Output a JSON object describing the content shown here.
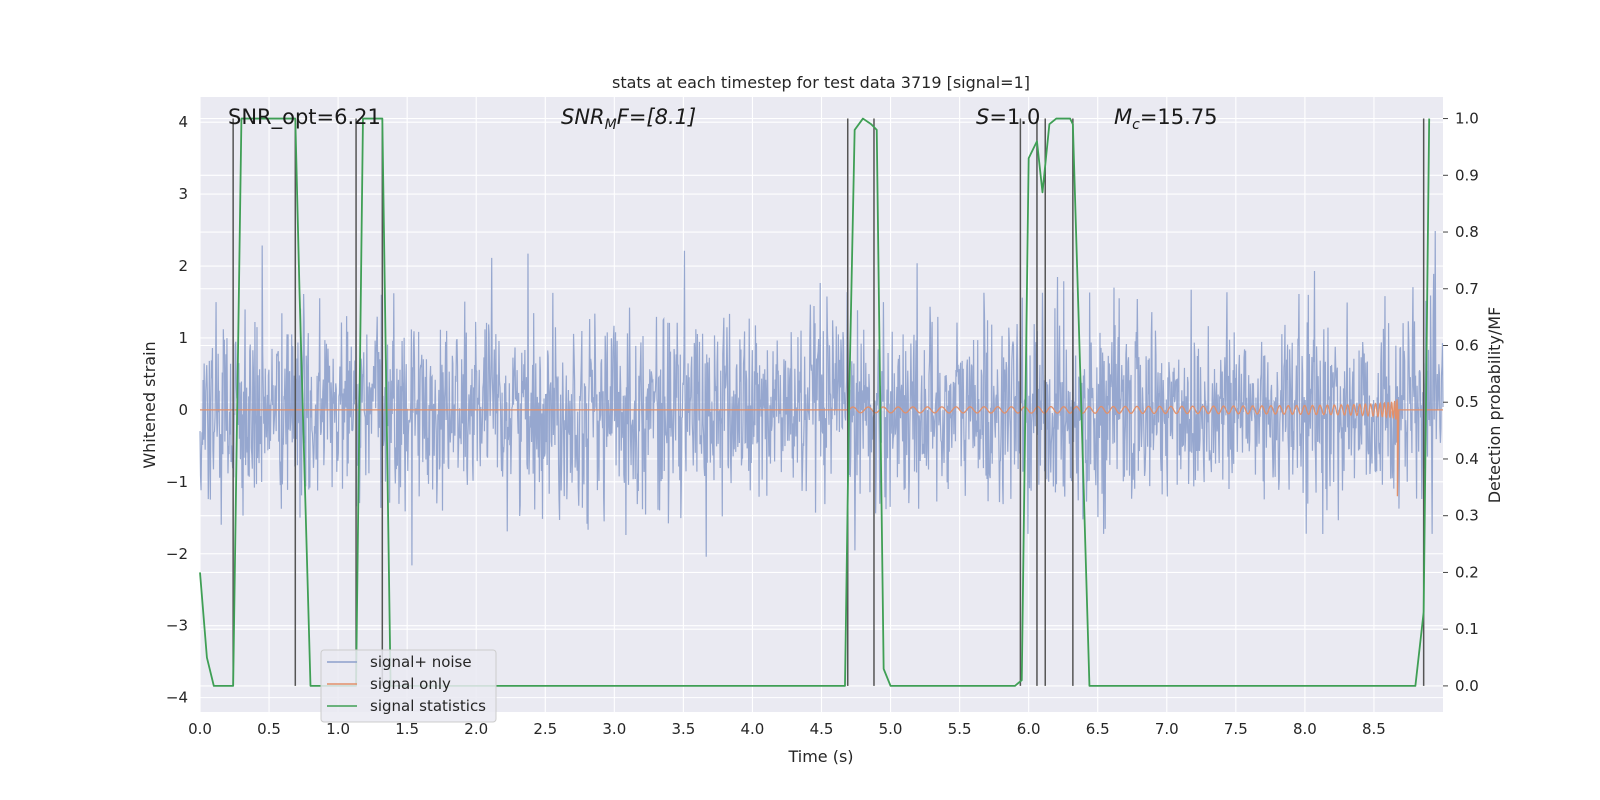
{
  "chart_data": {
    "type": "line",
    "title": "stats at each timestep for test data 3719 [signal=1]",
    "xlabel": "Time (s)",
    "ylabel_left": "Whitened strain",
    "ylabel_right": "Detection probability/MF",
    "xlim": [
      0.0,
      9.0
    ],
    "ylim_left": [
      -4.2,
      4.35
    ],
    "ylim_right": [
      -0.046,
      1.038
    ],
    "xticks": [
      "0.0",
      "0.5",
      "1.0",
      "1.5",
      "2.0",
      "2.5",
      "3.0",
      "3.5",
      "4.0",
      "4.5",
      "5.0",
      "5.5",
      "6.0",
      "6.5",
      "7.0",
      "7.5",
      "8.0",
      "8.5"
    ],
    "yticks_left": [
      "4",
      "3",
      "2",
      "1",
      "0",
      "−1",
      "−2",
      "−3",
      "−4"
    ],
    "yticks_right": [
      "1.0",
      "0.9",
      "0.8",
      "0.7",
      "0.6",
      "0.5",
      "0.4",
      "0.3",
      "0.2",
      "0.1",
      "0.0"
    ],
    "annotations": {
      "snr_opt": "SNR_opt=6.21",
      "snr_mf_base": "SNR",
      "snr_mf_sub": "M",
      "snr_mf_rest": "F=[8.1]",
      "s_base": "S",
      "s_rest": "=1.0",
      "mc_base": "M",
      "mc_sub": "c",
      "mc_rest": "=15.75"
    },
    "legend": [
      "signal+ noise",
      "signal only",
      "signal statistics"
    ],
    "colors": {
      "noise": "#8da0cb",
      "signal": "#e1906b",
      "stats": "#3f9f55",
      "vlines": "#555555",
      "plot_bg": "#eaeaf2",
      "grid": "#ffffff"
    },
    "noise_sigma": 0.65,
    "signal": {
      "start_time": 4.7,
      "end_time": 8.67,
      "start_amp": 0.04,
      "peak_amp": 0.95,
      "min_value": -1.2
    },
    "vertical_lines": [
      0.24,
      0.69,
      1.13,
      1.32,
      4.69,
      4.88,
      5.94,
      6.06,
      6.12,
      6.32,
      8.86
    ],
    "stats_series": {
      "x": [
        0.0,
        0.05,
        0.1,
        0.15,
        0.2,
        0.24,
        0.3,
        0.35,
        0.65,
        0.69,
        0.72,
        0.8,
        1.1,
        1.13,
        1.18,
        1.24,
        1.29,
        1.32,
        1.38,
        4.67,
        4.7,
        4.74,
        4.8,
        4.86,
        4.9,
        4.95,
        5.0,
        5.9,
        5.95,
        6.0,
        6.06,
        6.1,
        6.15,
        6.2,
        6.3,
        6.32,
        6.38,
        6.44,
        8.8,
        8.86,
        8.9
      ],
      "y": [
        0.2,
        0.05,
        0.0,
        0.0,
        0.0,
        0.0,
        1.0,
        1.0,
        1.0,
        1.0,
        0.7,
        0.0,
        0.0,
        0.0,
        1.0,
        1.0,
        1.0,
        1.0,
        0.0,
        0.0,
        0.5,
        0.98,
        1.0,
        0.99,
        0.98,
        0.03,
        0.0,
        0.0,
        0.01,
        0.93,
        0.96,
        0.87,
        0.99,
        1.0,
        1.0,
        0.99,
        0.5,
        0.0,
        0.0,
        0.13,
        1.0
      ]
    }
  }
}
